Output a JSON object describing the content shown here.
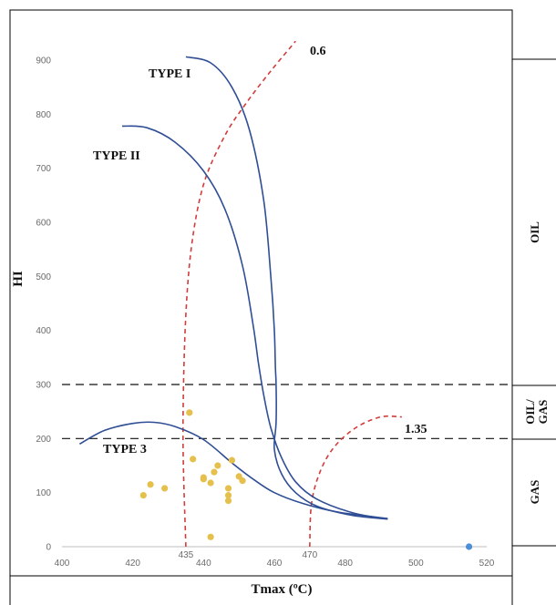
{
  "chart_data": {
    "type": "scatter",
    "xlabel": "Tmax (ºC)",
    "ylabel": "HI",
    "xlim": [
      400,
      520
    ],
    "ylim": [
      0,
      900
    ],
    "x_ticks": [
      400,
      420,
      440,
      460,
      480,
      500,
      520
    ],
    "x_extra_ticks": [
      435,
      470
    ],
    "y_ticks": [
      0,
      100,
      200,
      300,
      400,
      500,
      600,
      700,
      800,
      900
    ],
    "grid": false,
    "thresholds": [
      300,
      200
    ],
    "zones": [
      {
        "label": "OIL",
        "from": 300,
        "to": 900
      },
      {
        "label": "OIL/\nGAS",
        "from": 200,
        "to": 300
      },
      {
        "label": "GAS",
        "from": 0,
        "to": 200
      }
    ],
    "kerogen_curves": [
      {
        "name": "TYPE I",
        "points": [
          [
            435,
            906
          ],
          [
            442,
            895
          ],
          [
            448,
            850
          ],
          [
            453,
            770
          ],
          [
            457,
            640
          ],
          [
            459,
            500
          ],
          [
            460,
            400
          ],
          [
            460.3,
            330
          ],
          [
            460.5,
            300
          ],
          [
            460.5,
            230
          ],
          [
            460,
            180
          ],
          [
            462,
            135
          ],
          [
            466,
            100
          ],
          [
            472,
            75
          ],
          [
            482,
            58
          ],
          [
            492,
            51
          ]
        ]
      },
      {
        "name": "TYPE II",
        "points": [
          [
            417,
            778
          ],
          [
            424,
            775
          ],
          [
            432,
            748
          ],
          [
            440,
            695
          ],
          [
            446,
            625
          ],
          [
            451,
            520
          ],
          [
            454,
            410
          ],
          [
            455.5,
            340
          ],
          [
            457,
            280
          ],
          [
            459,
            220
          ],
          [
            462,
            165
          ],
          [
            466,
            120
          ],
          [
            472,
            88
          ],
          [
            482,
            63
          ],
          [
            492,
            51
          ]
        ]
      },
      {
        "name": "TYPE 3",
        "points": [
          [
            405,
            190
          ],
          [
            412,
            215
          ],
          [
            420,
            228
          ],
          [
            426,
            230
          ],
          [
            432,
            222
          ],
          [
            440,
            198
          ],
          [
            448,
            155
          ],
          [
            454,
            125
          ],
          [
            460,
            100
          ],
          [
            468,
            80
          ],
          [
            478,
            64
          ],
          [
            492,
            52
          ]
        ]
      }
    ],
    "maturity_lines": [
      {
        "label": "0.6",
        "points": [
          [
            435,
            0
          ],
          [
            434.2,
            200
          ],
          [
            434.8,
            400
          ],
          [
            436.5,
            550
          ],
          [
            440,
            670
          ],
          [
            446,
            760
          ],
          [
            452,
            820
          ],
          [
            459,
            880
          ],
          [
            466,
            935
          ]
        ]
      },
      {
        "label": "1.35",
        "points": [
          [
            470,
            0
          ],
          [
            470.5,
            80
          ],
          [
            473,
            140
          ],
          [
            477,
            185
          ],
          [
            483,
            220
          ],
          [
            490,
            240
          ],
          [
            496,
            240
          ]
        ]
      }
    ],
    "series": [
      {
        "color": "#e5c04d",
        "points": [
          [
            436,
            248
          ],
          [
            423,
            95
          ],
          [
            425,
            115
          ],
          [
            429,
            108
          ],
          [
            437,
            162
          ],
          [
            440,
            125
          ],
          [
            440,
            128
          ],
          [
            442,
            118
          ],
          [
            443,
            138
          ],
          [
            444,
            150
          ],
          [
            447,
            95
          ],
          [
            447,
            85
          ],
          [
            447,
            108
          ],
          [
            448,
            160
          ],
          [
            450,
            130
          ],
          [
            451,
            122
          ],
          [
            442,
            18
          ]
        ]
      },
      {
        "color": "#4a8fd8",
        "points": [
          [
            515,
            0
          ]
        ]
      }
    ],
    "colors": {
      "curve": "#2f4e95",
      "maturity": "#d23c3c",
      "threshold": "#111111"
    }
  }
}
